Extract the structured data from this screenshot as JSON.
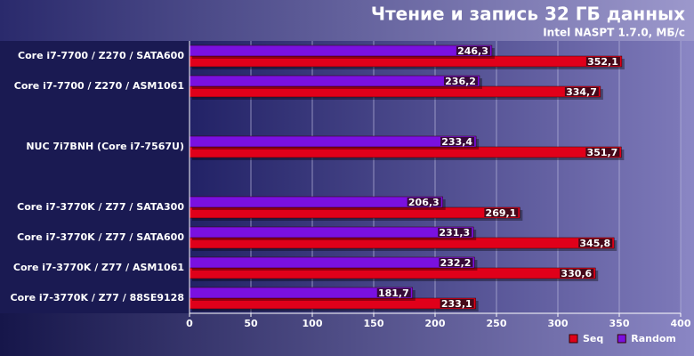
{
  "chart_data": {
    "type": "bar",
    "orientation": "horizontal",
    "title": "Чтение и запись 32 ГБ данных",
    "subtitle": "Intel NASPT 1.7.0, МБ/с",
    "categories": [
      "Core i7-7700 / Z270 / SATA600",
      "Core i7-7700 / Z270 / ASM1061",
      null,
      "NUC 7i7BNH (Core i7-7567U)",
      null,
      "Core i7-3770K / Z77 / SATA300",
      "Core i7-3770K / Z77 / SATA600",
      "Core i7-3770K / Z77 / ASM1061",
      "Core i7-3770K / Z77 / 88SE9128"
    ],
    "series": [
      {
        "name": "Seq",
        "color": "#e0001a",
        "values": [
          352.1,
          334.7,
          null,
          351.7,
          null,
          269.1,
          345.8,
          330.6,
          233.1
        ],
        "value_labels": [
          "352,1",
          "334,7",
          null,
          "351,7",
          null,
          "269,1",
          "345,8",
          "330,6",
          "233,1"
        ]
      },
      {
        "name": "Random",
        "color": "#7a10e0",
        "values": [
          246.3,
          236.2,
          null,
          233.4,
          null,
          206.3,
          231.3,
          232.2,
          181.7
        ],
        "value_labels": [
          "246,3",
          "236,2",
          null,
          "233,4",
          null,
          "206,3",
          "231,3",
          "232,2",
          "181,7"
        ]
      }
    ],
    "xlim": [
      0,
      400
    ],
    "xticks": [
      0,
      50,
      100,
      150,
      200,
      250,
      300,
      350,
      400
    ],
    "grid": true,
    "legend": "bottom-right"
  }
}
